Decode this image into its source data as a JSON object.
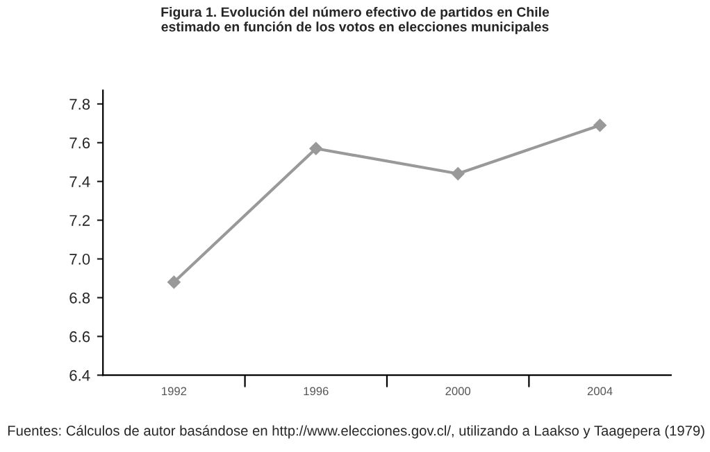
{
  "chart_data": {
    "type": "line",
    "title": "Figura 1. Evolución del número efectivo de partidos en Chile\nestimado en función de los votos en elecciones municipales",
    "categories": [
      "1992",
      "1996",
      "2000",
      "2004"
    ],
    "series": [
      {
        "color": "#999999",
        "values": [
          6.88,
          7.57,
          7.44,
          7.69
        ]
      }
    ],
    "ylim": [
      6.4,
      7.87
    ],
    "yticks": [
      {
        "value": 6.4,
        "label": "6.4"
      },
      {
        "value": 6.6,
        "label": "6.6"
      },
      {
        "value": 6.8,
        "label": "6.8"
      },
      {
        "value": 7.0,
        "label": "7.0"
      },
      {
        "value": 7.2,
        "label": "7.2"
      },
      {
        "value": 7.4,
        "label": "7.4"
      },
      {
        "value": 7.6,
        "label": "7.6"
      },
      {
        "value": 7.8,
        "label": "7.8"
      }
    ],
    "marker": "diamond",
    "line_style": "solid",
    "grid": false,
    "legend": false,
    "annotations": [
      "Fuentes: Cálculos de autor basándose en http://www.elecciones.gov.cl/, utilizando a Laakso y Taagepera (1979)"
    ]
  }
}
